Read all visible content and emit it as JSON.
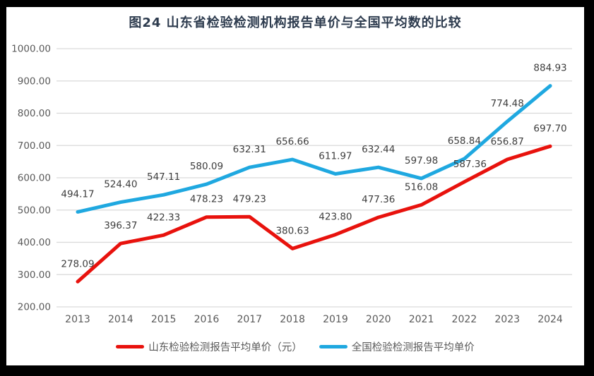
{
  "chart_data": {
    "type": "line",
    "title": "图24  山东省检验检测机构报告单价与全国平均数的比较",
    "x": [
      "2013",
      "2014",
      "2015",
      "2016",
      "2017",
      "2018",
      "2019",
      "2020",
      "2021",
      "2022",
      "2023",
      "2024"
    ],
    "xlabel": "",
    "ylabel": "",
    "ylim": [
      200,
      1000
    ],
    "y_tick_step": 100,
    "y_tick_format": "0.00",
    "grid": true,
    "legend_position": "bottom",
    "data_labels": true,
    "series": [
      {
        "name": "山东检验检测报告平均单价（元）",
        "color": "#e8120d",
        "values": [
          278.09,
          396.37,
          422.33,
          478.23,
          479.23,
          380.63,
          423.8,
          477.36,
          516.08,
          587.36,
          656.87,
          697.7
        ]
      },
      {
        "name": "全国检验检测报告平均单价",
        "color": "#1fa8e0",
        "values": [
          494.17,
          524.4,
          547.11,
          580.09,
          632.31,
          656.66,
          611.97,
          632.44,
          597.98,
          658.84,
          774.48,
          884.93
        ]
      }
    ],
    "colors": {
      "gridline": "#d9d9d9",
      "axis_label": "#595959",
      "data_label": "#3d3d3d",
      "title": "#2d3b4e",
      "panel_background": "#ffffff",
      "frame_background": "#000000"
    }
  }
}
